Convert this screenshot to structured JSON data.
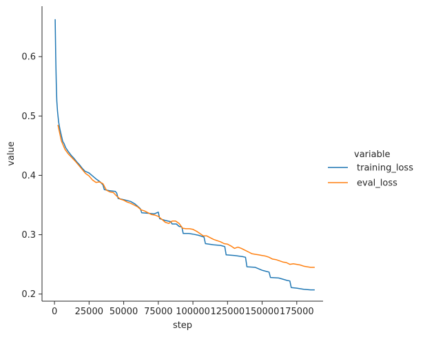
{
  "chart_data": {
    "type": "line",
    "xlabel": "step",
    "ylabel": "value",
    "xlim": [
      -9000,
      194000
    ],
    "ylim": [
      0.188,
      0.685
    ],
    "xticks": [
      0,
      25000,
      50000,
      75000,
      100000,
      125000,
      150000,
      175000
    ],
    "yticks": [
      0.2,
      0.3,
      0.4,
      0.5,
      0.6
    ],
    "grid": false,
    "legend": {
      "title": "variable",
      "placement": "right"
    },
    "series": [
      {
        "name": "training_loss",
        "color": "#1f77b4",
        "points": [
          [
            500,
            0.663
          ],
          [
            900,
            0.6
          ],
          [
            1300,
            0.555
          ],
          [
            1700,
            0.525
          ],
          [
            2200,
            0.508
          ],
          [
            3000,
            0.49
          ],
          [
            4000,
            0.477
          ],
          [
            5000,
            0.467
          ],
          [
            6000,
            0.457
          ],
          [
            7000,
            0.453
          ],
          [
            8000,
            0.447
          ],
          [
            10000,
            0.44
          ],
          [
            12000,
            0.434
          ],
          [
            14000,
            0.429
          ],
          [
            16000,
            0.423
          ],
          [
            18000,
            0.418
          ],
          [
            20000,
            0.412
          ],
          [
            22000,
            0.407
          ],
          [
            25000,
            0.404
          ],
          [
            28000,
            0.398
          ],
          [
            30000,
            0.394
          ],
          [
            33000,
            0.389
          ],
          [
            35000,
            0.384
          ],
          [
            36000,
            0.376
          ],
          [
            40000,
            0.374
          ],
          [
            44000,
            0.373
          ],
          [
            45000,
            0.37
          ],
          [
            46000,
            0.361
          ],
          [
            50000,
            0.359
          ],
          [
            55000,
            0.356
          ],
          [
            58000,
            0.352
          ],
          [
            60000,
            0.348
          ],
          [
            62000,
            0.344
          ],
          [
            63000,
            0.337
          ],
          [
            68000,
            0.336
          ],
          [
            72000,
            0.335
          ],
          [
            75000,
            0.338
          ],
          [
            76000,
            0.327
          ],
          [
            80000,
            0.324
          ],
          [
            84000,
            0.322
          ],
          [
            85000,
            0.318
          ],
          [
            88000,
            0.318
          ],
          [
            90000,
            0.314
          ],
          [
            92000,
            0.313
          ],
          [
            93000,
            0.302
          ],
          [
            97000,
            0.302
          ],
          [
            100000,
            0.301
          ],
          [
            104000,
            0.299
          ],
          [
            108000,
            0.296
          ],
          [
            109000,
            0.285
          ],
          [
            115000,
            0.283
          ],
          [
            120000,
            0.282
          ],
          [
            123000,
            0.28
          ],
          [
            124000,
            0.266
          ],
          [
            130000,
            0.265
          ],
          [
            136000,
            0.263
          ],
          [
            138000,
            0.262
          ],
          [
            139000,
            0.246
          ],
          [
            145000,
            0.245
          ],
          [
            150000,
            0.24
          ],
          [
            155000,
            0.237
          ],
          [
            156000,
            0.228
          ],
          [
            162000,
            0.227
          ],
          [
            168000,
            0.223
          ],
          [
            170000,
            0.222
          ],
          [
            171000,
            0.211
          ],
          [
            175000,
            0.21
          ],
          [
            180000,
            0.208
          ],
          [
            185000,
            0.207
          ],
          [
            188000,
            0.207
          ]
        ]
      },
      {
        "name": "eval_loss",
        "color": "#ff7f0e",
        "points": [
          [
            2500,
            0.485
          ],
          [
            5000,
            0.458
          ],
          [
            7500,
            0.444
          ],
          [
            10000,
            0.436
          ],
          [
            12500,
            0.43
          ],
          [
            15000,
            0.424
          ],
          [
            17500,
            0.417
          ],
          [
            20000,
            0.41
          ],
          [
            22500,
            0.403
          ],
          [
            25000,
            0.399
          ],
          [
            27500,
            0.392
          ],
          [
            30000,
            0.388
          ],
          [
            32500,
            0.389
          ],
          [
            35000,
            0.386
          ],
          [
            37500,
            0.375
          ],
          [
            40000,
            0.372
          ],
          [
            42500,
            0.371
          ],
          [
            45000,
            0.365
          ],
          [
            47500,
            0.36
          ],
          [
            50000,
            0.358
          ],
          [
            52500,
            0.355
          ],
          [
            55000,
            0.353
          ],
          [
            57500,
            0.35
          ],
          [
            60000,
            0.347
          ],
          [
            62500,
            0.342
          ],
          [
            65000,
            0.34
          ],
          [
            67500,
            0.337
          ],
          [
            70000,
            0.334
          ],
          [
            72500,
            0.333
          ],
          [
            75000,
            0.331
          ],
          [
            77500,
            0.326
          ],
          [
            80000,
            0.321
          ],
          [
            82500,
            0.319
          ],
          [
            85000,
            0.323
          ],
          [
            87500,
            0.323
          ],
          [
            90000,
            0.319
          ],
          [
            92500,
            0.311
          ],
          [
            95000,
            0.31
          ],
          [
            97500,
            0.31
          ],
          [
            100000,
            0.309
          ],
          [
            102500,
            0.306
          ],
          [
            105000,
            0.302
          ],
          [
            107500,
            0.298
          ],
          [
            110000,
            0.298
          ],
          [
            112500,
            0.295
          ],
          [
            115000,
            0.292
          ],
          [
            117500,
            0.29
          ],
          [
            120000,
            0.288
          ],
          [
            122500,
            0.285
          ],
          [
            125000,
            0.284
          ],
          [
            127500,
            0.281
          ],
          [
            130000,
            0.277
          ],
          [
            132500,
            0.279
          ],
          [
            135000,
            0.277
          ],
          [
            137500,
            0.274
          ],
          [
            140000,
            0.271
          ],
          [
            142500,
            0.268
          ],
          [
            145000,
            0.267
          ],
          [
            147500,
            0.266
          ],
          [
            150000,
            0.265
          ],
          [
            152500,
            0.264
          ],
          [
            155000,
            0.262
          ],
          [
            157500,
            0.259
          ],
          [
            160000,
            0.258
          ],
          [
            162500,
            0.256
          ],
          [
            165000,
            0.254
          ],
          [
            167500,
            0.253
          ],
          [
            170000,
            0.25
          ],
          [
            172500,
            0.251
          ],
          [
            175000,
            0.25
          ],
          [
            177500,
            0.249
          ],
          [
            180000,
            0.247
          ],
          [
            182500,
            0.246
          ],
          [
            185000,
            0.245
          ],
          [
            188000,
            0.245
          ]
        ]
      }
    ]
  }
}
